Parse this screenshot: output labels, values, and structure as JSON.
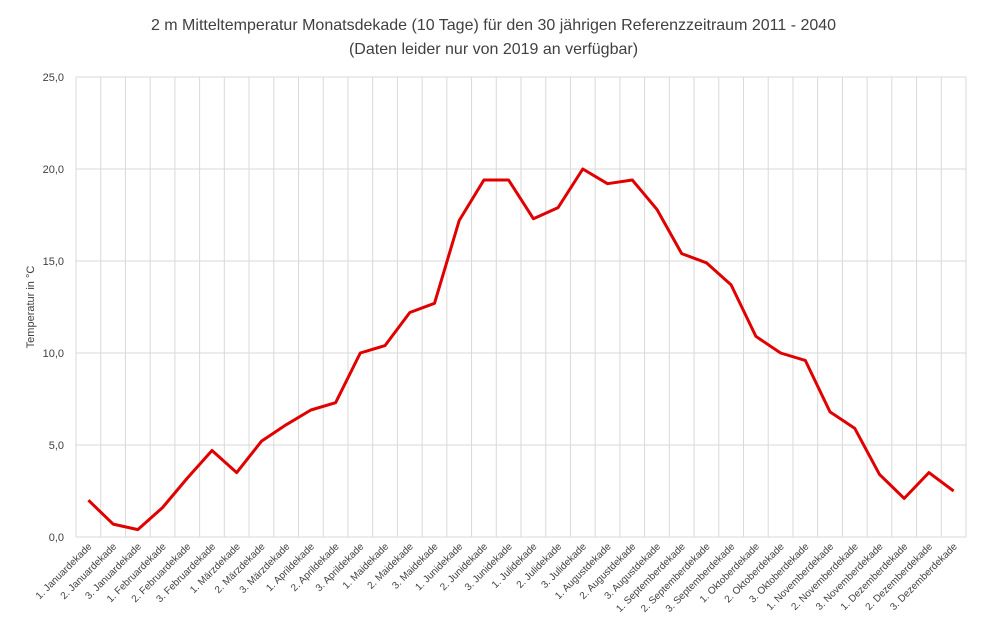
{
  "chart_data": {
    "type": "line",
    "title": "2 m Mitteltemperatur Monatsdekade (10 Tage) für den 30 jährigen Referenzzeitraum 2011 - 2040",
    "subtitle": "(Daten leider  nur von 2019 an verfügbar)",
    "xlabel": "",
    "ylabel": "Temperatur in °C",
    "ylim": [
      0,
      25
    ],
    "yticks": [
      "0,0",
      "5,0",
      "10,0",
      "15,0",
      "20,0",
      "25,0"
    ],
    "grid": true,
    "legend": "none",
    "categories": [
      "1. Januardekade",
      "2. Januardekade",
      "3. Januardekade",
      "1. Februardekade",
      "2. Februardekade",
      "3. Februardekade",
      "1. Märzdekade",
      "2. Märzdekade",
      "3. Märzdekade",
      "1. Aprildekade",
      "2. Aprildekade",
      "3. Aprildekade",
      "1. Maidekade",
      "2. Maidekade",
      "3. Maidekade",
      "1. Junidekade",
      "2. Junidekade",
      "3. Junidekade",
      "1. Julidekade",
      "2. Julidekade",
      "3. Julidekade",
      "1. Augustdekade",
      "2. Augustdekade",
      "3. Augustdekade",
      "1. Septemberdekade",
      "2. Septemberdekade",
      "3. Septemberdekade",
      "1. Oktoberdekade",
      "2. Oktoberdekade",
      "3. Oktoberdekade",
      "1. Novemberdekade",
      "2. Novemberdekade",
      "3. Novemberdekade",
      "1. Dezemberdekade",
      "2. Dezemberdekade",
      "3. Dezemberdekade"
    ],
    "series": [
      {
        "values": [
          2.0,
          0.7,
          0.4,
          1.6,
          3.2,
          4.7,
          3.5,
          5.2,
          6.1,
          6.9,
          7.3,
          10.0,
          10.4,
          12.2,
          12.7,
          17.2,
          19.4,
          19.4,
          17.3,
          17.9,
          20.0,
          19.2,
          19.4,
          17.8,
          15.4,
          14.9,
          13.7,
          10.9,
          10.0,
          9.6,
          6.8,
          5.9,
          3.4,
          2.1,
          3.5,
          2.5
        ],
        "color": "#e00000"
      }
    ],
    "colors": {
      "line": "#e00000",
      "grid": "#d9d9d9",
      "text": "#404040"
    }
  }
}
